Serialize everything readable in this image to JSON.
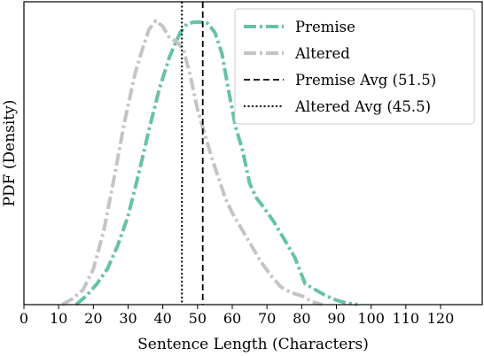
{
  "chart_data": {
    "type": "line",
    "xlabel": "Sentence Length (Characters)",
    "ylabel": "PDF (Density)",
    "xlim": [
      0,
      132
    ],
    "ylim": [
      0,
      1.0
    ],
    "xticks": [
      "0",
      "10",
      "20",
      "30",
      "40",
      "50",
      "60",
      "70",
      "80",
      "90",
      "100",
      "110",
      "120"
    ],
    "xtick_values": [
      0,
      10,
      20,
      30,
      40,
      50,
      60,
      70,
      80,
      90,
      100,
      110,
      120
    ],
    "yticks_visible": false,
    "grid": false,
    "legend_position": "top-right",
    "series": [
      {
        "name": "Premise",
        "style": "dashdot",
        "color": "#66c2a5",
        "x": [
          15,
          18,
          21,
          24,
          27,
          30,
          33,
          36,
          39,
          42,
          45,
          47,
          49,
          51,
          53,
          55,
          57,
          59,
          61,
          63,
          65,
          67,
          69,
          72,
          75,
          78,
          81,
          84,
          87,
          90,
          93,
          96
        ],
        "y": [
          0.0,
          0.03,
          0.07,
          0.12,
          0.2,
          0.3,
          0.44,
          0.59,
          0.73,
          0.84,
          0.92,
          0.95,
          0.955,
          0.955,
          0.95,
          0.92,
          0.85,
          0.72,
          0.6,
          0.52,
          0.41,
          0.36,
          0.33,
          0.28,
          0.22,
          0.16,
          0.07,
          0.05,
          0.03,
          0.015,
          0.005,
          0.0
        ]
      },
      {
        "name": "Altered",
        "style": "dashdot",
        "color": "#c4c4c4",
        "x": [
          11,
          14,
          17,
          20,
          23,
          26,
          29,
          32,
          34,
          36,
          38,
          40,
          42,
          44,
          46,
          48,
          50,
          52,
          54,
          56,
          58,
          60,
          62,
          65,
          68,
          71,
          74,
          77,
          80,
          83,
          86
        ],
        "y": [
          0.0,
          0.02,
          0.05,
          0.12,
          0.25,
          0.43,
          0.62,
          0.78,
          0.86,
          0.93,
          0.96,
          0.94,
          0.9,
          0.89,
          0.86,
          0.77,
          0.66,
          0.58,
          0.5,
          0.43,
          0.36,
          0.31,
          0.27,
          0.21,
          0.15,
          0.1,
          0.06,
          0.04,
          0.03,
          0.01,
          0.0
        ]
      }
    ],
    "vlines": [
      {
        "name": "Premise Avg (51.5)",
        "x": 51.5,
        "style": "dashed",
        "color": "#000000"
      },
      {
        "name": "Altered Avg (45.5)",
        "x": 45.5,
        "style": "dotted",
        "color": "#000000"
      }
    ]
  }
}
